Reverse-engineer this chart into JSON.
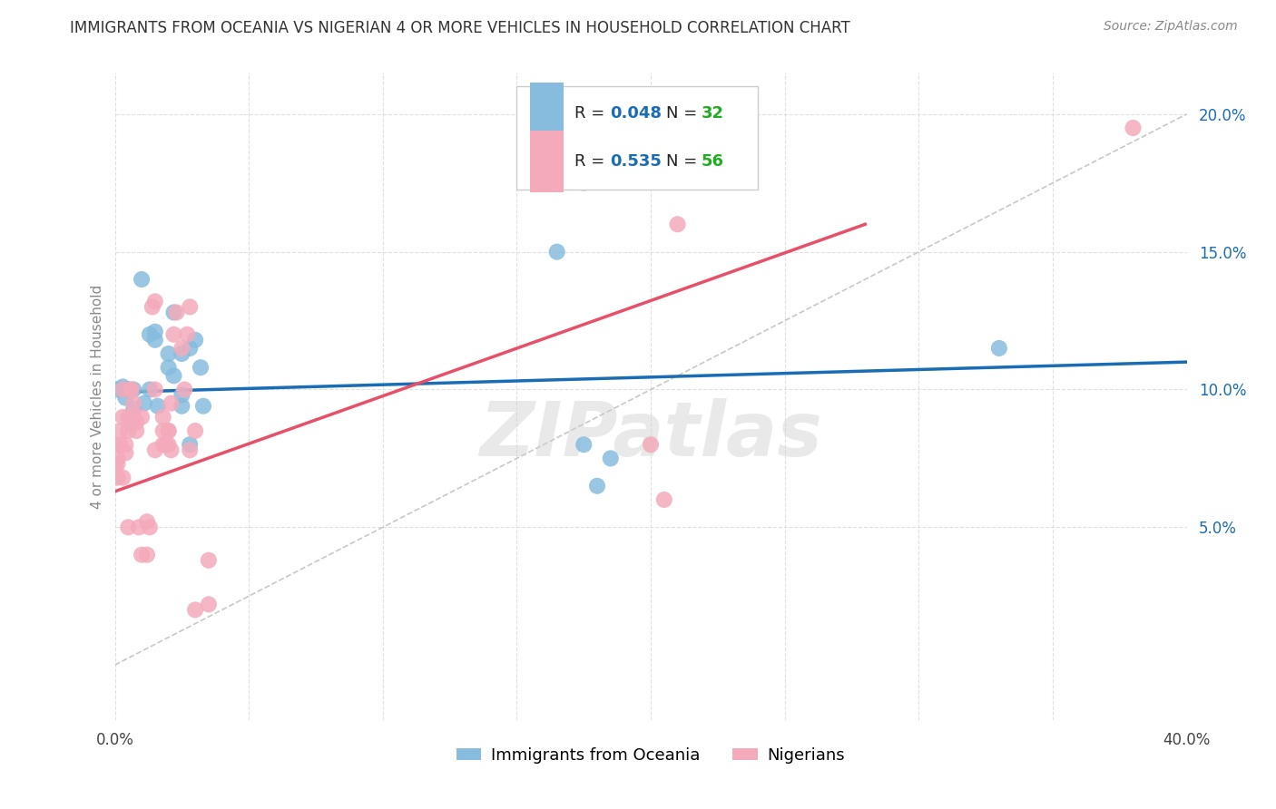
{
  "title": "IMMIGRANTS FROM OCEANIA VS NIGERIAN 4 OR MORE VEHICLES IN HOUSEHOLD CORRELATION CHART",
  "source": "Source: ZipAtlas.com",
  "ylabel": "4 or more Vehicles in Household",
  "xlim": [
    0.0,
    0.4
  ],
  "ylim": [
    -0.02,
    0.215
  ],
  "yticks": [
    0.05,
    0.1,
    0.15,
    0.2
  ],
  "ytick_labels": [
    "5.0%",
    "10.0%",
    "15.0%",
    "20.0%"
  ],
  "xticks": [
    0.0,
    0.05,
    0.1,
    0.15,
    0.2,
    0.25,
    0.3,
    0.35,
    0.4
  ],
  "xtick_labels": [
    "0.0%",
    "",
    "",
    "",
    "",
    "",
    "",
    "",
    "40.0%"
  ],
  "legend_blue_r": "0.048",
  "legend_blue_n": "32",
  "legend_pink_r": "0.535",
  "legend_pink_n": "56",
  "legend_label_blue": "Immigrants from Oceania",
  "legend_label_pink": "Nigerians",
  "blue_color": "#87BCDE",
  "pink_color": "#F4AABB",
  "blue_line_color": "#1a6cb5",
  "pink_line_color": "#e8506a",
  "diagonal_color": "#c8c8c8",
  "r_value_color": "#1a6cb5",
  "n_value_color": "#22aa22",
  "blue_scatter": [
    [
      0.001,
      0.1
    ],
    [
      0.003,
      0.101
    ],
    [
      0.003,
      0.1
    ],
    [
      0.004,
      0.097
    ],
    [
      0.005,
      0.1
    ],
    [
      0.006,
      0.088
    ],
    [
      0.007,
      0.093
    ],
    [
      0.007,
      0.1
    ],
    [
      0.01,
      0.14
    ],
    [
      0.011,
      0.095
    ],
    [
      0.013,
      0.12
    ],
    [
      0.013,
      0.1
    ],
    [
      0.015,
      0.121
    ],
    [
      0.015,
      0.118
    ],
    [
      0.016,
      0.094
    ],
    [
      0.02,
      0.108
    ],
    [
      0.02,
      0.113
    ],
    [
      0.022,
      0.128
    ],
    [
      0.022,
      0.105
    ],
    [
      0.025,
      0.113
    ],
    [
      0.025,
      0.098
    ],
    [
      0.025,
      0.094
    ],
    [
      0.028,
      0.115
    ],
    [
      0.028,
      0.08
    ],
    [
      0.03,
      0.118
    ],
    [
      0.032,
      0.108
    ],
    [
      0.033,
      0.094
    ],
    [
      0.165,
      0.15
    ],
    [
      0.175,
      0.08
    ],
    [
      0.18,
      0.065
    ],
    [
      0.185,
      0.075
    ],
    [
      0.33,
      0.115
    ]
  ],
  "pink_scatter": [
    [
      0.0,
      0.072
    ],
    [
      0.0,
      0.08
    ],
    [
      0.001,
      0.075
    ],
    [
      0.001,
      0.073
    ],
    [
      0.001,
      0.068
    ],
    [
      0.002,
      0.085
    ],
    [
      0.002,
      0.08
    ],
    [
      0.003,
      0.1
    ],
    [
      0.003,
      0.09
    ],
    [
      0.003,
      0.068
    ],
    [
      0.004,
      0.077
    ],
    [
      0.004,
      0.08
    ],
    [
      0.005,
      0.09
    ],
    [
      0.005,
      0.085
    ],
    [
      0.005,
      0.05
    ],
    [
      0.006,
      0.1
    ],
    [
      0.006,
      0.1
    ],
    [
      0.007,
      0.095
    ],
    [
      0.007,
      0.09
    ],
    [
      0.008,
      0.088
    ],
    [
      0.008,
      0.085
    ],
    [
      0.009,
      0.05
    ],
    [
      0.01,
      0.04
    ],
    [
      0.01,
      0.09
    ],
    [
      0.012,
      0.04
    ],
    [
      0.012,
      0.052
    ],
    [
      0.013,
      0.05
    ],
    [
      0.014,
      0.13
    ],
    [
      0.015,
      0.132
    ],
    [
      0.015,
      0.1
    ],
    [
      0.015,
      0.078
    ],
    [
      0.018,
      0.09
    ],
    [
      0.018,
      0.085
    ],
    [
      0.018,
      0.08
    ],
    [
      0.019,
      0.08
    ],
    [
      0.02,
      0.085
    ],
    [
      0.02,
      0.085
    ],
    [
      0.02,
      0.08
    ],
    [
      0.021,
      0.095
    ],
    [
      0.021,
      0.078
    ],
    [
      0.022,
      0.12
    ],
    [
      0.023,
      0.128
    ],
    [
      0.025,
      0.115
    ],
    [
      0.026,
      0.1
    ],
    [
      0.027,
      0.12
    ],
    [
      0.028,
      0.13
    ],
    [
      0.028,
      0.078
    ],
    [
      0.03,
      0.085
    ],
    [
      0.03,
      0.02
    ],
    [
      0.035,
      0.022
    ],
    [
      0.035,
      0.038
    ],
    [
      0.175,
      0.175
    ],
    [
      0.2,
      0.08
    ],
    [
      0.205,
      0.06
    ],
    [
      0.21,
      0.16
    ],
    [
      0.38,
      0.195
    ]
  ],
  "blue_line_x": [
    0.0,
    0.4
  ],
  "blue_line_y": [
    0.099,
    0.11
  ],
  "pink_line_x": [
    0.0,
    0.28
  ],
  "pink_line_y": [
    0.063,
    0.16
  ],
  "diag_line_x": [
    0.0,
    0.4
  ],
  "diag_line_y": [
    0.0,
    0.2
  ],
  "watermark": "ZIPatlas",
  "background_color": "#ffffff",
  "grid_color": "#dddddd"
}
